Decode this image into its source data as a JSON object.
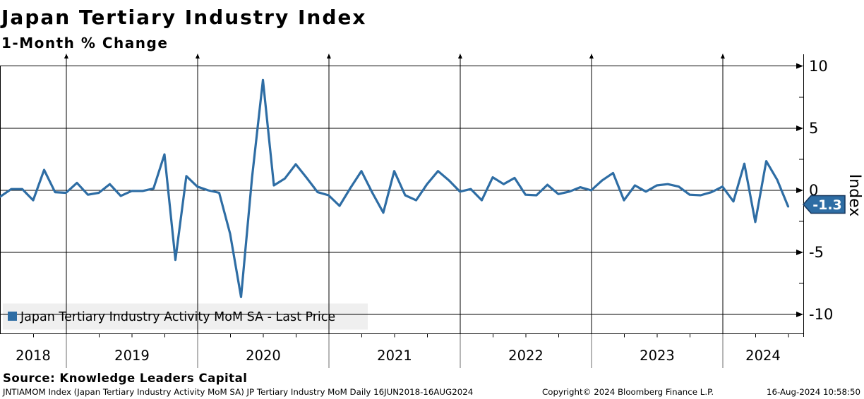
{
  "chart_data": {
    "type": "line",
    "title": "Japan Tertiary Industry Index",
    "subtitle": "1-Month % Change",
    "ylabel": "Index",
    "ylim": [
      -12,
      10.3
    ],
    "grid": true,
    "legend_position": "bottom-left-inside",
    "ytick_labels": [
      "10",
      "5",
      "0",
      "-5",
      "-10"
    ],
    "ytick_values": [
      10,
      5,
      0,
      -5,
      -10
    ],
    "year_labels": [
      "2018",
      "2019",
      "2020",
      "2021",
      "2022",
      "2023",
      "2024"
    ],
    "legend": "Japan Tertiary Industry Activity MoM SA - Last Price",
    "last_price": -1.3,
    "last_price_label": "-1.3",
    "x": [
      "2018-07",
      "2018-08",
      "2018-09",
      "2018-10",
      "2018-11",
      "2018-12",
      "2019-01",
      "2019-02",
      "2019-03",
      "2019-04",
      "2019-05",
      "2019-06",
      "2019-07",
      "2019-08",
      "2019-09",
      "2019-10",
      "2019-11",
      "2019-12",
      "2020-01",
      "2020-02",
      "2020-03",
      "2020-04",
      "2020-05",
      "2020-06",
      "2020-07",
      "2020-08",
      "2020-09",
      "2020-10",
      "2020-11",
      "2020-12",
      "2021-01",
      "2021-02",
      "2021-03",
      "2021-04",
      "2021-05",
      "2021-06",
      "2021-07",
      "2021-08",
      "2021-09",
      "2021-10",
      "2021-11",
      "2021-12",
      "2022-01",
      "2022-02",
      "2022-03",
      "2022-04",
      "2022-05",
      "2022-06",
      "2022-07",
      "2022-08",
      "2022-09",
      "2022-10",
      "2022-11",
      "2022-12",
      "2023-01",
      "2023-02",
      "2023-03",
      "2023-04",
      "2023-05",
      "2023-06",
      "2023-07",
      "2023-08",
      "2023-09",
      "2023-10",
      "2023-11",
      "2023-12",
      "2024-01",
      "2024-02",
      "2024-03",
      "2024-04",
      "2024-05",
      "2024-06",
      "2024-07"
    ],
    "series": [
      {
        "name": "Japan Tertiary Industry Activity MoM SA",
        "values": [
          -0.5,
          0.1,
          0.1,
          -0.8,
          1.65,
          -0.15,
          -0.2,
          0.6,
          -0.35,
          -0.2,
          0.5,
          -0.45,
          -0.05,
          -0.05,
          0.15,
          2.9,
          -5.6,
          1.15,
          0.3,
          0.0,
          -0.2,
          -3.5,
          -8.6,
          1.0,
          8.9,
          0.4,
          0.95,
          2.1,
          1.0,
          -0.15,
          -0.4,
          -1.25,
          0.2,
          1.55,
          -0.2,
          -1.8,
          1.55,
          -0.4,
          -0.8,
          0.5,
          1.55,
          0.8,
          -0.1,
          0.1,
          -0.8,
          1.05,
          0.5,
          1.0,
          -0.35,
          -0.4,
          0.45,
          -0.3,
          -0.1,
          0.25,
          0.0,
          0.8,
          1.4,
          -0.8,
          0.4,
          -0.1,
          0.4,
          0.5,
          0.3,
          -0.35,
          -0.4,
          -0.15,
          0.3,
          -0.9,
          2.15,
          -2.55,
          2.35,
          0.85,
          -1.3
        ]
      }
    ],
    "colors": {
      "line": "#2e6da4",
      "badge_fill": "#2e6da4",
      "badge_border": "#16365c",
      "legend_bg": "#efefef",
      "grid": "#000000"
    }
  },
  "footer": {
    "source": "Source: Knowledge Leaders Capital",
    "terminal": "JNTIAMOM Index (Japan Tertiary Industry Activity MoM SA) JP Tertiary Industry MoM  Daily 16JUN2018-16AUG2024",
    "copyright": "Copyright© 2024 Bloomberg Finance L.P.",
    "timestamp": "16-Aug-2024 10:58:50"
  }
}
